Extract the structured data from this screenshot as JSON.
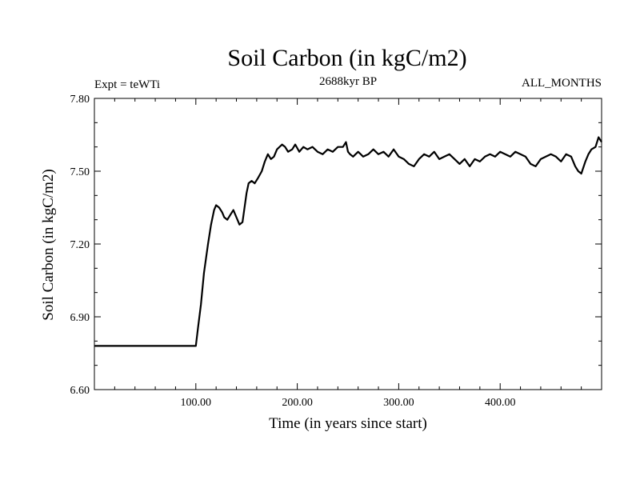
{
  "chart_data": {
    "type": "line",
    "title": "Soil Carbon (in kgC/m2)",
    "subtitle_left": "Expt = teWTi",
    "subtitle_center": "2688kyr BP",
    "subtitle_right": "ALL_MONTHS",
    "xlabel": "Time (in years since start)",
    "ylabel": "Soil Carbon (in kgC/m2)",
    "xlim": [
      0,
      500
    ],
    "ylim": [
      6.6,
      7.8
    ],
    "xticks": [
      100,
      200,
      300,
      400
    ],
    "xtick_labels": [
      "100.00",
      "200.00",
      "300.00",
      "400.00"
    ],
    "yticks": [
      6.6,
      6.9,
      7.2,
      7.5,
      7.8
    ],
    "ytick_labels": [
      "6.60",
      "6.90",
      "7.20",
      "7.50",
      "7.80"
    ],
    "grid": false,
    "series": [
      {
        "name": "Soil Carbon",
        "x": [
          0,
          100,
          102,
          105,
          108,
          112,
          115,
          118,
          120,
          123,
          126,
          128,
          131,
          134,
          137,
          140,
          143,
          146,
          148,
          150,
          152,
          155,
          158,
          161,
          165,
          168,
          171,
          174,
          177,
          180,
          185,
          188,
          191,
          195,
          198,
          202,
          206,
          210,
          215,
          220,
          225,
          230,
          235,
          240,
          245,
          248,
          250,
          252,
          255,
          260,
          265,
          270,
          275,
          280,
          285,
          290,
          295,
          300,
          305,
          310,
          315,
          320,
          325,
          330,
          335,
          340,
          345,
          350,
          355,
          360,
          365,
          370,
          375,
          380,
          385,
          390,
          395,
          400,
          405,
          410,
          415,
          420,
          425,
          430,
          435,
          440,
          445,
          450,
          455,
          460,
          465,
          470,
          474,
          477,
          480,
          484,
          487,
          490,
          494,
          497,
          500
        ],
        "y": [
          6.78,
          6.78,
          6.85,
          6.95,
          7.08,
          7.2,
          7.28,
          7.34,
          7.36,
          7.35,
          7.33,
          7.31,
          7.3,
          7.32,
          7.34,
          7.31,
          7.28,
          7.29,
          7.35,
          7.41,
          7.45,
          7.46,
          7.45,
          7.47,
          7.5,
          7.54,
          7.57,
          7.55,
          7.56,
          7.59,
          7.61,
          7.6,
          7.58,
          7.59,
          7.61,
          7.58,
          7.6,
          7.59,
          7.6,
          7.58,
          7.57,
          7.59,
          7.58,
          7.6,
          7.6,
          7.62,
          7.58,
          7.57,
          7.56,
          7.58,
          7.56,
          7.57,
          7.59,
          7.57,
          7.58,
          7.56,
          7.59,
          7.56,
          7.55,
          7.53,
          7.52,
          7.55,
          7.57,
          7.56,
          7.58,
          7.55,
          7.56,
          7.57,
          7.55,
          7.53,
          7.55,
          7.52,
          7.55,
          7.54,
          7.56,
          7.57,
          7.56,
          7.58,
          7.57,
          7.56,
          7.58,
          7.57,
          7.56,
          7.53,
          7.52,
          7.55,
          7.56,
          7.57,
          7.56,
          7.54,
          7.57,
          7.56,
          7.52,
          7.5,
          7.49,
          7.54,
          7.57,
          7.59,
          7.6,
          7.64,
          7.62
        ]
      }
    ]
  }
}
